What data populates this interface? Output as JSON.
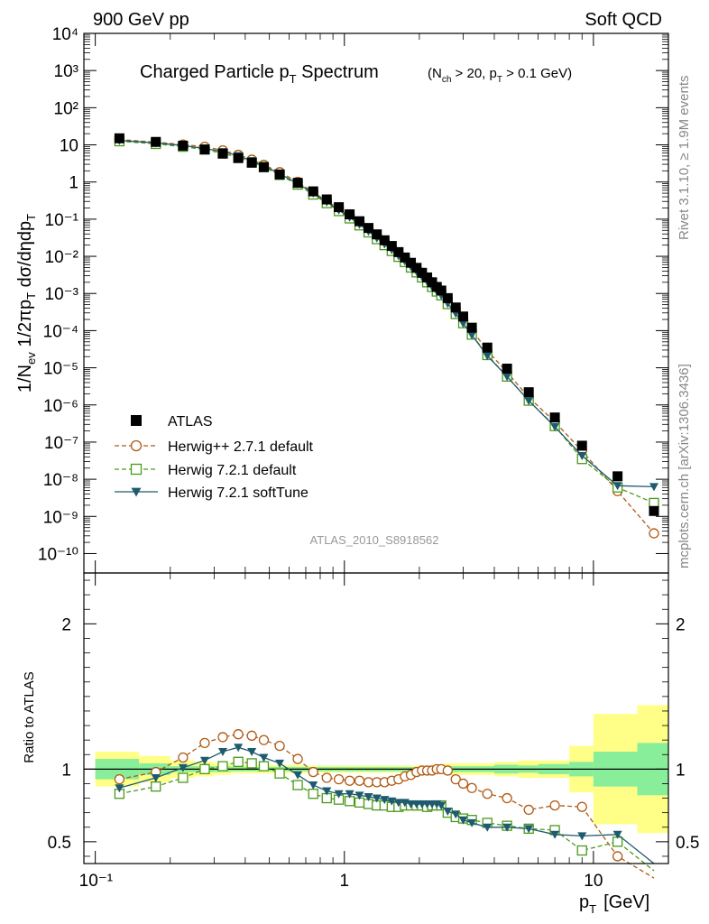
{
  "header": {
    "left": "900 GeV pp",
    "right": "Soft QCD"
  },
  "side_text": {
    "rivet": "Rivet 3.1.10, ≥ 1.9M events",
    "mcplots": "mcplots.cern.ch [arXiv:1306.3436]"
  },
  "chart_data": [
    {
      "type": "scatter",
      "title_main": "Charged Particle p",
      "title_main_sub": "T",
      "title_main_rest": " Spectrum",
      "title_cuts": "(N",
      "title_cuts_sub1": "ch",
      "title_cuts_mid": " > 20, p",
      "title_cuts_sub2": "T",
      "title_cuts_rest": " > 0.1 GeV)",
      "analysis_label": "ATLAS_2010_S8918562",
      "ylabel": "1/N_ev 1/2πp_T dσ/dηdp_T",
      "xscale": "log",
      "yscale": "log",
      "xlim": [
        0.09,
        20
      ],
      "ylim": [
        3e-11,
        10000
      ],
      "ytick_labels": [
        "10⁻¹⁰",
        "10⁻⁹",
        "10⁻⁸",
        "10⁻⁷",
        "10⁻⁶",
        "10⁻⁵",
        "10⁻⁴",
        "10⁻³",
        "10⁻²",
        "10⁻¹",
        "1",
        "10",
        "10²",
        "10³",
        "10⁴"
      ],
      "legend_position": "lower-left",
      "x": [
        0.125,
        0.175,
        0.225,
        0.275,
        0.325,
        0.375,
        0.425,
        0.475,
        0.55,
        0.65,
        0.75,
        0.85,
        0.95,
        1.05,
        1.15,
        1.25,
        1.35,
        1.45,
        1.55,
        1.65,
        1.75,
        1.85,
        1.95,
        2.05,
        2.15,
        2.25,
        2.35,
        2.45,
        2.6,
        2.8,
        3.0,
        3.25,
        3.75,
        4.5,
        5.5,
        7.0,
        9.0,
        12.5,
        17.5
      ],
      "series": [
        {
          "name": "ATLAS",
          "color": "#000000",
          "marker": "square-filled",
          "values": [
            15,
            12,
            9.5,
            7.5,
            5.8,
            4.4,
            3.3,
            2.5,
            1.6,
            0.95,
            0.56,
            0.34,
            0.21,
            0.135,
            0.088,
            0.058,
            0.039,
            0.027,
            0.019,
            0.013,
            0.0093,
            0.0067,
            0.0049,
            0.0036,
            0.0027,
            0.002,
            0.0015,
            0.0012,
            0.00075,
            0.00042,
            0.00024,
            0.00012,
            3.5e-05,
            9.5e-06,
            2.2e-06,
            4.6e-07,
            8e-08,
            1.2e-08,
            1.4e-09
          ]
        },
        {
          "name": "Herwig++ 2.7.1 default",
          "color": "#b05a14",
          "marker": "circle-open",
          "dash": "dashed",
          "values": [
            13.9,
            11.8,
            10.2,
            8.9,
            7.1,
            5.4,
            4.0,
            2.9,
            1.84,
            1.01,
            0.53,
            0.31,
            0.19,
            0.122,
            0.08,
            0.053,
            0.036,
            0.025,
            0.0175,
            0.0122,
            0.0088,
            0.0064,
            0.0048,
            0.0036,
            0.0027,
            0.002,
            0.0015,
            0.0012,
            0.00074,
            0.00039,
            0.000215,
            0.000104,
            2.9e-05,
            7.6e-06,
            1.6e-06,
            3.5e-07,
            5.8e-08,
            4.8e-09,
            3.5e-10
          ]
        },
        {
          "name": "Herwig 7.2.1 default",
          "color": "#4a9a1a",
          "marker": "square-open",
          "dash": "dashed",
          "values": [
            12.5,
            10.6,
            8.9,
            7.5,
            5.9,
            4.6,
            3.4,
            2.55,
            1.55,
            0.85,
            0.46,
            0.27,
            0.165,
            0.105,
            0.068,
            0.044,
            0.029,
            0.02,
            0.0139,
            0.0097,
            0.007,
            0.005,
            0.0037,
            0.0027,
            0.002,
            0.0015,
            0.00113,
            0.00089,
            0.00052,
            0.00028,
            0.000158,
            7.8e-05,
            2.2e-05,
            5.8e-06,
            1.3e-06,
            2.7e-07,
            3.5e-08,
            6e-09,
            2.3e-09
          ]
        },
        {
          "name": "Herwig 7.2.1 softTune",
          "color": "#1f5b6e",
          "marker": "triangle-down-filled",
          "dash": "solid",
          "values": [
            13.1,
            11.3,
            9.6,
            8.0,
            6.5,
            5.1,
            3.7,
            2.7,
            1.66,
            0.91,
            0.5,
            0.29,
            0.175,
            0.112,
            0.072,
            0.047,
            0.031,
            0.0214,
            0.0149,
            0.0103,
            0.0074,
            0.0053,
            0.0039,
            0.0028,
            0.0021,
            0.0015,
            0.00115,
            0.00089,
            0.00054,
            0.00029,
            0.000156,
            7.6e-05,
            2.1e-05,
            5.8e-06,
            1.3e-06,
            2.6e-07,
            4.3e-08,
            6.7e-09,
            6.3e-09
          ]
        }
      ]
    },
    {
      "type": "line",
      "ylabel": "Ratio to ATLAS",
      "xlabel": "p_T [GeV]",
      "xscale": "log",
      "xlim": [
        0.09,
        20
      ],
      "ylim": [
        0.35,
        2.35
      ],
      "x_tick_labels": [
        "10⁻¹",
        "1",
        "10"
      ],
      "y_tick_labels": [
        "0.5",
        "1",
        "2"
      ],
      "reference_line": 1,
      "bands": {
        "x_edges": [
          0.1,
          0.15,
          0.2,
          0.25,
          0.3,
          0.35,
          0.4,
          0.45,
          0.5,
          0.6,
          0.7,
          0.8,
          0.9,
          1.0,
          1.1,
          1.2,
          1.3,
          1.4,
          1.5,
          1.6,
          1.7,
          1.8,
          1.9,
          2.0,
          2.1,
          2.2,
          2.3,
          2.4,
          2.5,
          2.7,
          2.9,
          3.1,
          3.5,
          4.0,
          5.0,
          6.0,
          8.0,
          10.0,
          15.0,
          20.0
        ],
        "stat_half_width": [
          0.07,
          0.04,
          0.02,
          0.02,
          0.02,
          0.015,
          0.015,
          0.015,
          0.015,
          0.015,
          0.015,
          0.015,
          0.015,
          0.015,
          0.015,
          0.015,
          0.015,
          0.015,
          0.015,
          0.015,
          0.015,
          0.015,
          0.015,
          0.015,
          0.015,
          0.015,
          0.015,
          0.015,
          0.02,
          0.02,
          0.02,
          0.02,
          0.02,
          0.03,
          0.025,
          0.035,
          0.05,
          0.12,
          0.18
        ],
        "total_half_width": [
          0.12,
          0.09,
          0.06,
          0.05,
          0.04,
          0.03,
          0.03,
          0.03,
          0.03,
          0.03,
          0.025,
          0.025,
          0.025,
          0.025,
          0.025,
          0.025,
          0.025,
          0.025,
          0.025,
          0.025,
          0.025,
          0.025,
          0.025,
          0.025,
          0.025,
          0.025,
          0.025,
          0.03,
          0.04,
          0.04,
          0.04,
          0.04,
          0.04,
          0.05,
          0.06,
          0.06,
          0.16,
          0.38,
          0.44
        ],
        "stat_color": "#88ee99",
        "total_color": "#ffff88"
      },
      "series": [
        {
          "name": "Herwig++ 2.7.1 default",
          "color": "#b05a14",
          "marker": "circle-open",
          "dash": "dashed",
          "values": [
            0.93,
            0.98,
            1.08,
            1.18,
            1.22,
            1.24,
            1.23,
            1.2,
            1.16,
            1.07,
            0.98,
            0.94,
            0.93,
            0.92,
            0.92,
            0.91,
            0.91,
            0.91,
            0.92,
            0.93,
            0.95,
            0.96,
            0.98,
            0.99,
            0.99,
            0.99,
            1.0,
            1.0,
            0.99,
            0.93,
            0.9,
            0.87,
            0.83,
            0.8,
            0.72,
            0.75,
            0.74,
            0.4,
            0.25
          ]
        },
        {
          "name": "Herwig 7.2.1 default",
          "color": "#4a9a1a",
          "marker": "square-open",
          "dash": "dashed",
          "values": [
            0.83,
            0.88,
            0.94,
            1.0,
            1.02,
            1.05,
            1.04,
            1.02,
            0.97,
            0.89,
            0.83,
            0.8,
            0.79,
            0.78,
            0.77,
            0.76,
            0.75,
            0.75,
            0.74,
            0.74,
            0.75,
            0.75,
            0.75,
            0.75,
            0.74,
            0.75,
            0.75,
            0.75,
            0.7,
            0.67,
            0.66,
            0.65,
            0.63,
            0.61,
            0.59,
            0.58,
            0.44,
            0.5,
            0.3
          ]
        },
        {
          "name": "Herwig 7.2.1 softTune",
          "color": "#1f5b6e",
          "marker": "triangle-down-filled",
          "dash": "solid",
          "values": [
            0.87,
            0.94,
            1.01,
            1.06,
            1.12,
            1.15,
            1.12,
            1.08,
            1.04,
            0.96,
            0.89,
            0.85,
            0.83,
            0.83,
            0.82,
            0.81,
            0.8,
            0.79,
            0.78,
            0.77,
            0.77,
            0.76,
            0.76,
            0.76,
            0.76,
            0.76,
            0.76,
            0.75,
            0.71,
            0.69,
            0.65,
            0.63,
            0.6,
            0.6,
            0.59,
            0.55,
            0.54,
            0.55,
            0.35
          ]
        }
      ]
    }
  ]
}
